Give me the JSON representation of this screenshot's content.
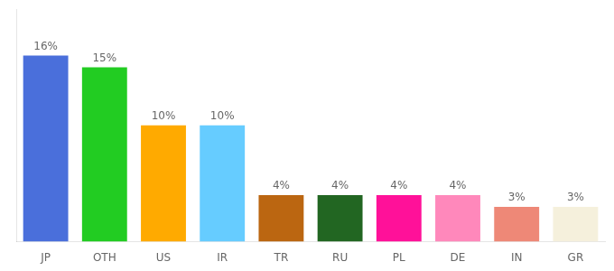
{
  "chart_data": {
    "type": "bar",
    "categories": [
      "JP",
      "OTH",
      "US",
      "IR",
      "TR",
      "RU",
      "PL",
      "DE",
      "IN",
      "GR"
    ],
    "values": [
      16,
      15,
      10,
      10,
      4,
      4,
      4,
      4,
      3,
      3
    ],
    "colors": [
      "#4a6fdb",
      "#22cc22",
      "#ffaa00",
      "#66ccff",
      "#bb6611",
      "#226622",
      "#ff1199",
      "#ff88bb",
      "#ee8877",
      "#f5f0dc"
    ],
    "ylim": [
      0,
      20
    ],
    "grid": false,
    "data_labels": true,
    "value_labels": [
      "16%",
      "15%",
      "10%",
      "10%",
      "4%",
      "4%",
      "4%",
      "4%",
      "3%",
      "3%"
    ],
    "tick_labels": "x"
  }
}
